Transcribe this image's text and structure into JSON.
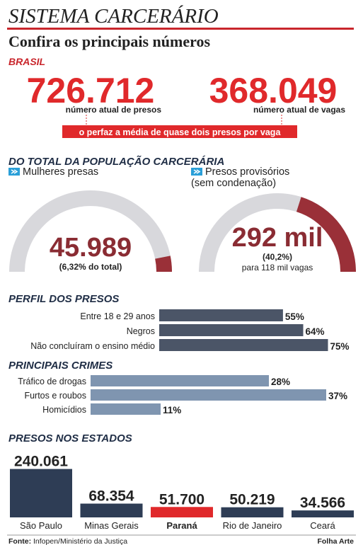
{
  "title": "SISTEMA CARCERÁRIO",
  "subtitle": "Confira os principais números",
  "brasil": {
    "heading": "BRASIL",
    "presos": "726.712",
    "presos_label": "número atual de presos",
    "vagas": "368.049",
    "vagas_label": "número atual de vagas",
    "note": "o perfaz a média de quase dois presos por vaga"
  },
  "populacao_heading": "DO TOTAL DA POPULAÇÃO CARCERÁRIA",
  "perfil_heading": "PERFIL DOS PRESOS",
  "crimes_heading": "PRINCIPAIS CRIMES",
  "estados_heading": "PRESOS NOS ESTADOS",
  "footer": {
    "source_label": "Fonte:",
    "source": "Infopen/Ministério da Justiça",
    "credit": "Folha Arte"
  },
  "chart_data": [
    {
      "type": "gauge",
      "title": [
        "Mulheres presas"
      ],
      "count": "45.989",
      "value": 6.32,
      "value_label": "(6,32% do total)",
      "color": "#9a3038",
      "track_color": "#d8d8dc"
    },
    {
      "type": "gauge",
      "title": [
        "Presos provisórios",
        "(sem condenação)"
      ],
      "count": "292 mil",
      "value": 40.2,
      "value_label": "(40,2%)",
      "note": "para 118 mil vagas",
      "color": "#9a3038",
      "track_color": "#d8d8dc"
    },
    {
      "type": "hbar",
      "categories": [
        "Entre 18 e 29 anos",
        "Negros",
        "Não concluíram o ensino médio"
      ],
      "values": [
        55,
        64,
        75
      ],
      "value_labels": [
        "55%",
        "64%",
        "75%"
      ],
      "color": "#4b5567"
    },
    {
      "type": "hbar",
      "categories": [
        "Tráfico de drogas",
        "Furtos e roubos",
        "Homicídios"
      ],
      "values": [
        28,
        37,
        11
      ],
      "value_labels": [
        "28%",
        "37%",
        "11%"
      ],
      "color": "#7f95b0"
    },
    {
      "type": "bar",
      "categories": [
        "São Paulo",
        "Minas Gerais",
        "Paraná",
        "Rio de Janeiro",
        "Ceará"
      ],
      "values": [
        240061,
        68354,
        51700,
        50219,
        34566
      ],
      "value_labels": [
        "240.061",
        "68.354",
        "51.700",
        "50.219",
        "34.566"
      ],
      "colors": [
        "#2e3d55",
        "#2e3d55",
        "#e0292b",
        "#2e3d55",
        "#2e3d55"
      ],
      "highlight": 2
    }
  ]
}
